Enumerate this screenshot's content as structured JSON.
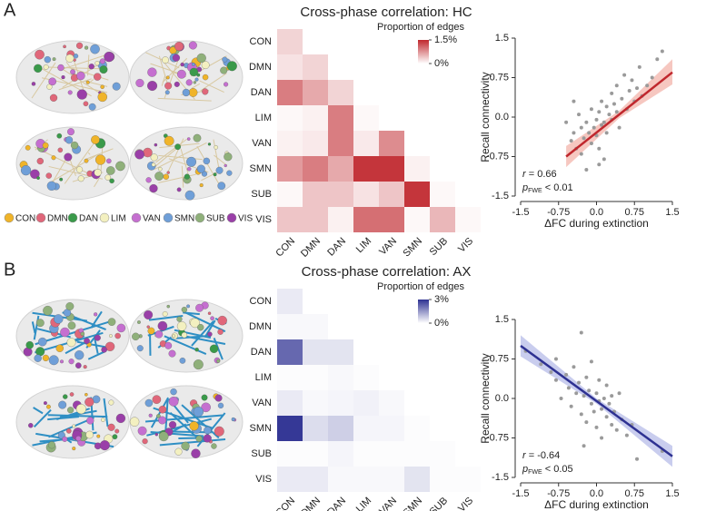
{
  "panel_labels": [
    "A",
    "B"
  ],
  "brain_legend": [
    {
      "name": "CON",
      "color": "#f0b429"
    },
    {
      "name": "DMN",
      "color": "#e0677a"
    },
    {
      "name": "DAN",
      "color": "#3a9a4a"
    },
    {
      "name": "LIM",
      "color": "#f3f0c0"
    },
    {
      "name": "VAN",
      "color": "#c56fd0"
    },
    {
      "name": "SMN",
      "color": "#6f9fd8"
    },
    {
      "name": "SUB",
      "color": "#8fb07a"
    },
    {
      "name": "VIS",
      "color": "#9a3fa8"
    }
  ],
  "chart_data": [
    {
      "type": "heatmap",
      "title": "Cross-phase correlation: HC",
      "categories": [
        "CON",
        "DMN",
        "DAN",
        "LIM",
        "VAN",
        "SMN",
        "SUB",
        "VIS"
      ],
      "values": [
        [
          0.3,
          null,
          null,
          null,
          null,
          null,
          null,
          null
        ],
        [
          0.2,
          0.3,
          null,
          null,
          null,
          null,
          null,
          null
        ],
        [
          0.9,
          0.6,
          0.3,
          null,
          null,
          null,
          null,
          null
        ],
        [
          0.05,
          0.1,
          0.9,
          0.05,
          null,
          null,
          null,
          null
        ],
        [
          0.1,
          0.15,
          0.9,
          0.15,
          0.8,
          null,
          null,
          null
        ],
        [
          0.7,
          0.9,
          0.6,
          1.4,
          1.4,
          0.1,
          null,
          null
        ],
        [
          0.05,
          0.4,
          0.4,
          0.2,
          0.4,
          1.4,
          0.05,
          null
        ],
        [
          0.4,
          0.4,
          0.1,
          1.0,
          1.0,
          0.05,
          0.5,
          0.05
        ]
      ],
      "color": "#c0272d",
      "zlim": [
        0,
        1.5
      ],
      "colorbar_label": "Proportion of edges",
      "colorbar_ticks": [
        {
          "value": 1.5,
          "label": "1.5%"
        },
        {
          "value": 0,
          "label": "0%"
        }
      ]
    },
    {
      "type": "scatter",
      "xlabel": "ΔFC during extinction",
      "ylabel": "Recall connectivity",
      "xlim": [
        -1.5,
        1.5
      ],
      "ylim": [
        -1.5,
        1.5
      ],
      "xticks": [
        -1.5,
        -0.75,
        {
          "value": 0,
          "label": "0.0"
        },
        0.75,
        1.5
      ],
      "yticks": [
        -1.5,
        -0.75,
        {
          "value": 0,
          "label": "0.0"
        },
        0.75,
        1.5
      ],
      "point_color": "#9a9a9a",
      "x": [
        -0.6,
        -0.5,
        -0.45,
        -0.4,
        -0.35,
        -0.3,
        -0.3,
        -0.25,
        -0.2,
        -0.2,
        -0.15,
        -0.1,
        -0.1,
        -0.05,
        0.0,
        0.0,
        0.05,
        0.05,
        0.1,
        0.1,
        0.15,
        0.15,
        0.2,
        0.2,
        0.25,
        0.3,
        0.3,
        0.35,
        0.4,
        0.4,
        0.45,
        0.5,
        0.55,
        0.6,
        0.65,
        0.7,
        0.75,
        0.8,
        0.85,
        0.9,
        1.0,
        1.1,
        1.2,
        1.3,
        -0.45,
        0.05
      ],
      "y": [
        -0.1,
        -0.45,
        -0.3,
        -0.6,
        0.05,
        -0.2,
        -0.7,
        -0.4,
        -0.1,
        -1.0,
        -0.3,
        -0.5,
        0.15,
        -0.2,
        -0.05,
        -0.35,
        0.1,
        -0.6,
        -0.15,
        0.3,
        -0.1,
        -0.8,
        0.2,
        -0.3,
        0.05,
        0.45,
        -0.05,
        0.25,
        0.1,
        0.6,
        -0.2,
        0.35,
        0.8,
        0.15,
        0.5,
        0.7,
        0.3,
        0.55,
        0.95,
        0.4,
        0.6,
        0.75,
        1.1,
        1.25,
        0.3,
        -0.9
      ],
      "fit": {
        "color": "#c0272d",
        "band_color": "#f4b9b0",
        "x": [
          -0.6,
          0.45,
          1.5
        ],
        "y": [
          -0.75,
          0.05,
          0.85
        ],
        "lower": [
          -0.95,
          -0.02,
          0.62
        ],
        "upper": [
          -0.55,
          0.12,
          1.1
        ]
      },
      "annotations": [
        [
          "r",
          " = 0.66"
        ],
        [
          "p",
          "FWE",
          " < 0.01"
        ]
      ]
    },
    {
      "type": "heatmap",
      "title": "Cross-phase correlation: AX",
      "categories": [
        "CON",
        "DMN",
        "DAN",
        "LIM",
        "VAN",
        "SMN",
        "SUB",
        "VIS"
      ],
      "values": [
        [
          0.3,
          null,
          null,
          null,
          null,
          null,
          null,
          null
        ],
        [
          0.1,
          0.1,
          null,
          null,
          null,
          null,
          null,
          null
        ],
        [
          2.2,
          0.4,
          0.4,
          null,
          null,
          null,
          null,
          null
        ],
        [
          0.05,
          0.05,
          0.1,
          0.05,
          null,
          null,
          null,
          null
        ],
        [
          0.3,
          0.1,
          0.15,
          0.2,
          0.1,
          null,
          null,
          null
        ],
        [
          2.9,
          0.5,
          0.7,
          0.15,
          0.15,
          0.05,
          null,
          null
        ],
        [
          0.05,
          0.05,
          0.15,
          0.05,
          0.05,
          0.05,
          0.05,
          null
        ],
        [
          0.3,
          0.3,
          0.1,
          0.1,
          0.1,
          0.4,
          0.05,
          0.05
        ]
      ],
      "color": "#2e3192",
      "zlim": [
        0,
        3
      ],
      "colorbar_label": "Proportion of edges",
      "colorbar_ticks": [
        {
          "value": 3,
          "label": "3%"
        },
        {
          "value": 0,
          "label": "0%"
        }
      ]
    },
    {
      "type": "scatter",
      "xlabel": "ΔFC during extinction",
      "ylabel": "Recall connectivity",
      "xlim": [
        -1.5,
        1.5
      ],
      "ylim": [
        -1.5,
        1.5
      ],
      "xticks": [
        -1.5,
        -0.75,
        {
          "value": 0,
          "label": "0.0"
        },
        0.75,
        1.5
      ],
      "yticks": [
        -1.5,
        -0.75,
        {
          "value": 0,
          "label": "0.0"
        },
        0.75,
        1.5
      ],
      "point_color": "#9a9a9a",
      "x": [
        -1.4,
        -1.1,
        -0.9,
        -0.8,
        -0.7,
        -0.6,
        -0.55,
        -0.5,
        -0.45,
        -0.4,
        -0.35,
        -0.3,
        -0.3,
        -0.25,
        -0.2,
        -0.2,
        -0.15,
        -0.1,
        -0.1,
        -0.05,
        0.0,
        0.0,
        0.05,
        0.05,
        0.1,
        0.1,
        0.15,
        0.2,
        0.2,
        0.25,
        0.3,
        0.35,
        0.4,
        0.45,
        0.5,
        0.6,
        0.7,
        0.8,
        1.3,
        -0.8,
        -0.25,
        0.3
      ],
      "y": [
        0.9,
        0.65,
        0.5,
        0.35,
        0.0,
        0.45,
        0.2,
        -0.15,
        0.6,
        0.1,
        0.3,
        -0.3,
        1.25,
        0.05,
        0.4,
        -0.45,
        0.15,
        -0.1,
        0.7,
        -0.25,
        0.1,
        -0.55,
        -0.05,
        0.35,
        -0.2,
        -0.75,
        0.0,
        -0.35,
        0.25,
        -0.1,
        -0.5,
        -0.25,
        -0.6,
        0.1,
        -0.4,
        -0.7,
        -0.5,
        -1.15,
        -1.0,
        0.75,
        -0.9,
        0.05
      ],
      "fit": {
        "color": "#2e3192",
        "band_color": "#bcc0ea",
        "x": [
          -1.5,
          0,
          1.5
        ],
        "y": [
          1.0,
          -0.05,
          -1.1
        ],
        "lower": [
          0.8,
          -0.1,
          -1.3
        ],
        "upper": [
          1.2,
          0.0,
          -0.9
        ]
      },
      "annotations": [
        [
          "r",
          " = -0.64"
        ],
        [
          "p",
          "FWE",
          " < 0.05"
        ]
      ]
    }
  ]
}
